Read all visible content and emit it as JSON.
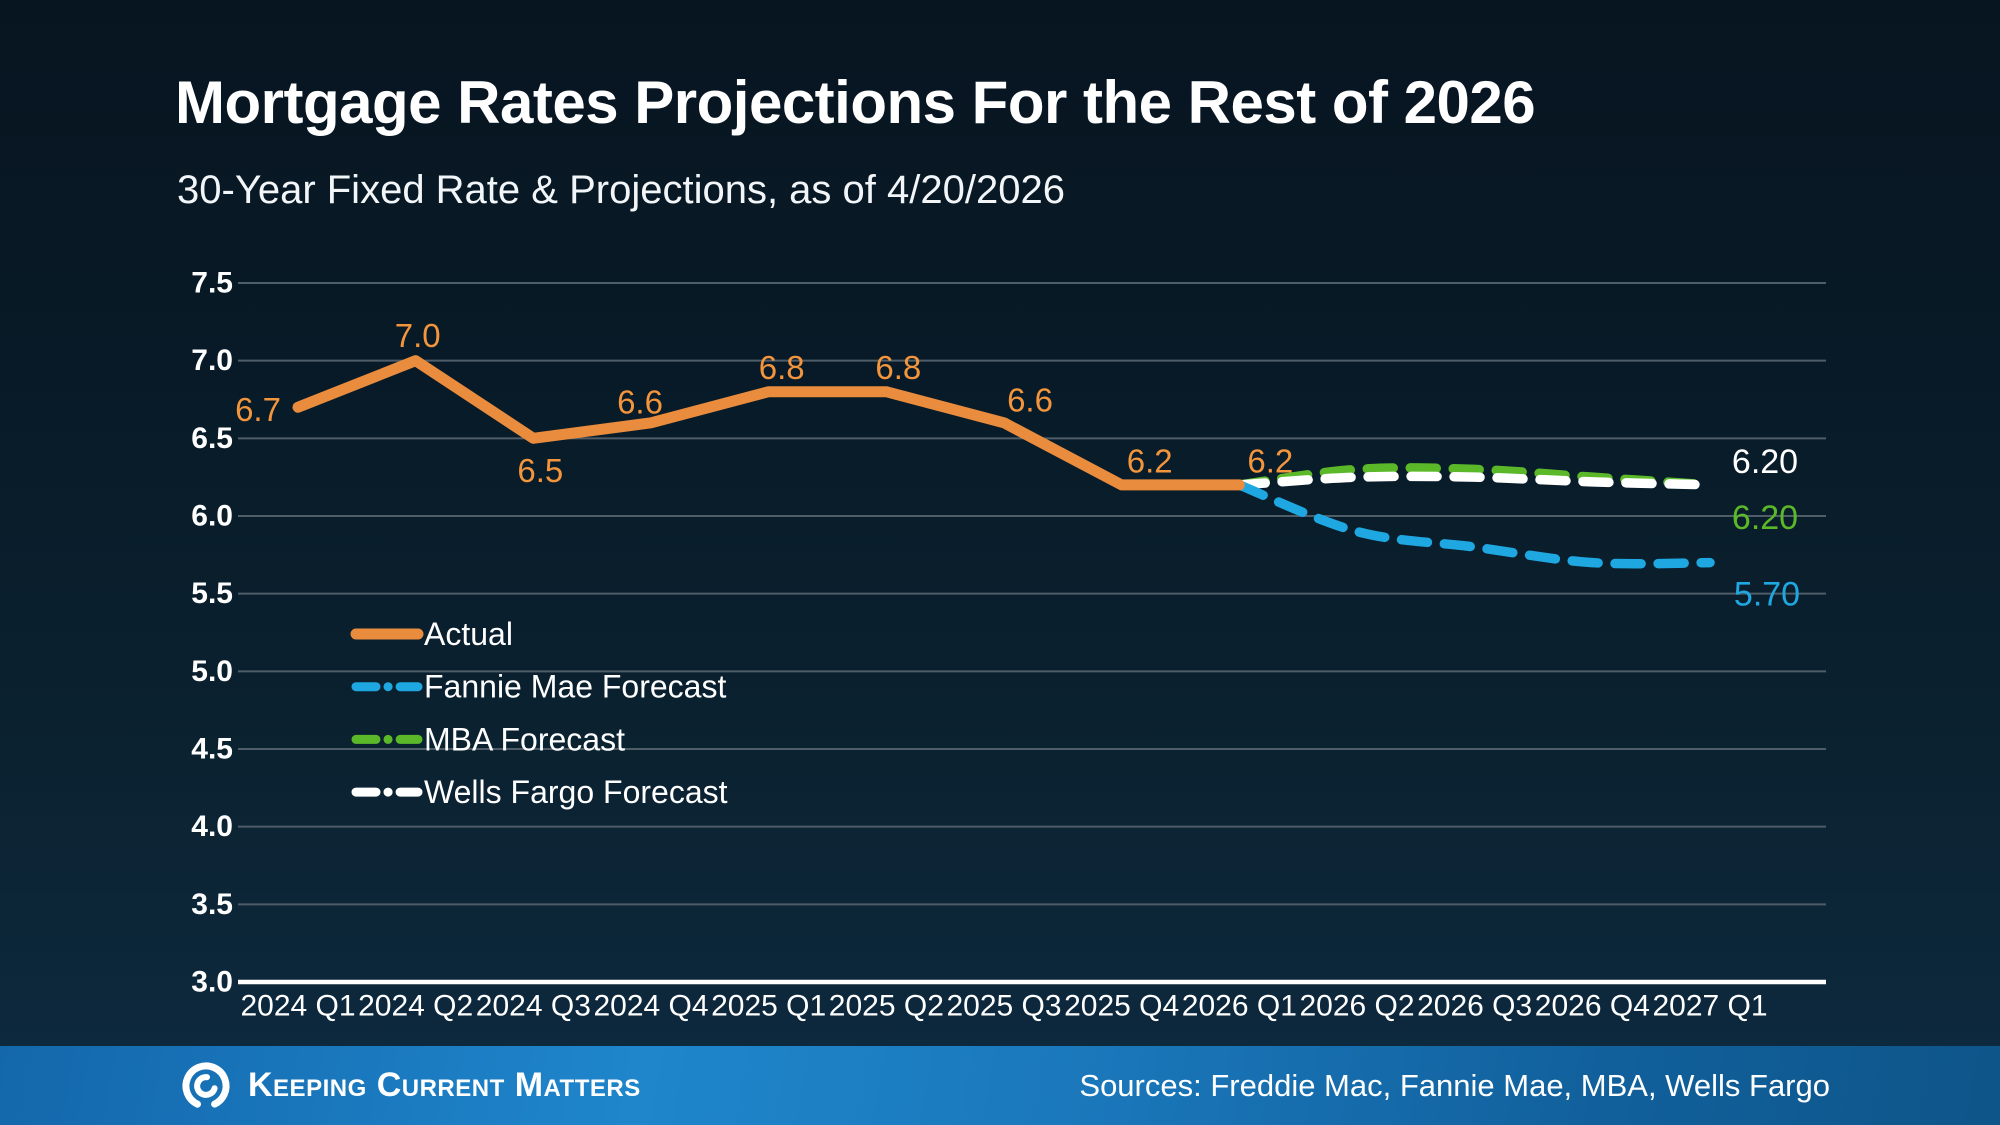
{
  "header": {
    "title": "Mortgage Rates Projections For the Rest of 2026",
    "subtitle": "30-Year Fixed Rate & Projections, as of 4/20/2026"
  },
  "chart_data": {
    "type": "line",
    "title": "Mortgage Rates Projections For the Rest of 2026",
    "subtitle": "30-Year Fixed Rate & Projections, as of 4/20/2026",
    "xlabel": "",
    "ylabel": "",
    "ylim": [
      3.0,
      7.5
    ],
    "ytick_labels": [
      "7.5",
      "7.0",
      "6.5",
      "6.0",
      "5.5",
      "5.0",
      "4.5",
      "4.0",
      "3.5",
      "3.0"
    ],
    "grid": true,
    "legend_position": "inside-left",
    "categories": [
      "2024 Q1",
      "2024 Q2",
      "2024 Q3",
      "2024 Q4",
      "2025 Q1",
      "2025 Q2",
      "2025 Q3",
      "2025 Q4",
      "2026 Q1",
      "2026 Q2",
      "2026 Q3",
      "2026 Q4",
      "2027 Q1"
    ],
    "series": [
      {
        "name": "Actual",
        "style": "solid",
        "color": "#EA8C3D",
        "label_color": "#F2953C",
        "values": [
          6.7,
          7.0,
          6.5,
          6.6,
          6.8,
          6.8,
          6.6,
          6.2,
          6.2,
          null,
          null,
          null,
          null
        ],
        "point_labels": [
          "6.7",
          "7.0",
          "6.5",
          "6.6",
          "6.8",
          "6.8",
          "6.6",
          "6.2",
          "6.2"
        ]
      },
      {
        "name": "Fannie Mae Forecast",
        "style": "dashed",
        "color": "#1EA7E1",
        "values": [
          null,
          null,
          null,
          null,
          null,
          null,
          null,
          null,
          6.2,
          5.9,
          5.8,
          5.7,
          5.7
        ],
        "end_label": "5.70"
      },
      {
        "name": "MBA Forecast",
        "style": "dashed",
        "color": "#5BB929",
        "values": [
          null,
          null,
          null,
          null,
          null,
          null,
          null,
          null,
          6.2,
          6.3,
          6.3,
          6.25,
          6.2
        ],
        "end_label": "6.20"
      },
      {
        "name": "Wells Fargo Forecast",
        "style": "dashed",
        "color": "#FFFFFF",
        "values": [
          null,
          null,
          null,
          null,
          null,
          null,
          null,
          null,
          6.2,
          6.25,
          6.25,
          6.22,
          6.2
        ],
        "end_label": "6.20"
      }
    ],
    "colors": {
      "gridline": "#4F5D68",
      "axis_line": "#FFFFFF",
      "background_top": "#071520",
      "background_bottom": "#0e2b41",
      "footer_bar": "#1F86CC"
    }
  },
  "footer": {
    "brand": "Keeping Current Matters",
    "sources": "Sources: Freddie Mac, Fannie Mae, MBA, Wells Fargo"
  }
}
